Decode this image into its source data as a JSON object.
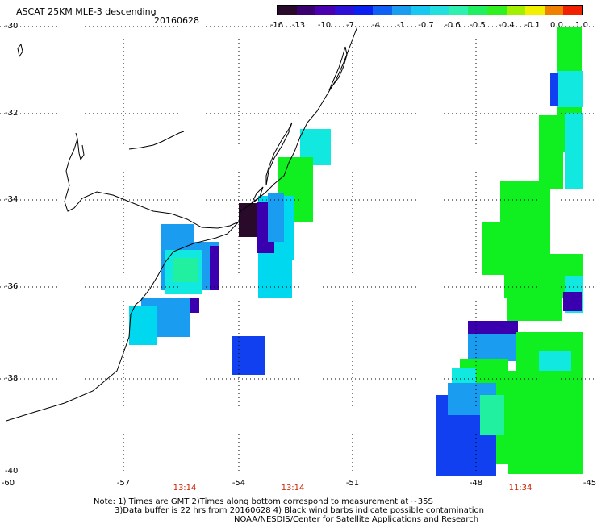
{
  "header": {
    "product": "ASCAT 25KM MLE-3 descending",
    "date": "20160628"
  },
  "colorbar": {
    "colors": [
      "#2a0a2a",
      "#3a0070",
      "#4b00b0",
      "#2d10d8",
      "#0a20f0",
      "#1060f5",
      "#1a9df0",
      "#18c8f0",
      "#22e0e0",
      "#30f0b0",
      "#20f060",
      "#30f020",
      "#a0f000",
      "#f0f000",
      "#f08000",
      "#f02000"
    ],
    "labels": [
      "-16",
      "-13",
      "-10",
      "-7",
      "-4",
      "-1",
      "-0.7",
      "-0.6",
      "-0.5",
      "-0.4",
      "-0.1",
      "0.0",
      "1.0"
    ]
  },
  "axes": {
    "lat_labels": [
      "-30",
      "-32",
      "-34",
      "-36",
      "-38",
      "-40"
    ],
    "lon_labels": [
      "-60",
      "-57",
      "-54",
      "-51",
      "-48",
      "-45"
    ]
  },
  "times": [
    "13:14",
    "13:14",
    "11:34"
  ],
  "notes": {
    "line1": "Note: 1) Times are GMT 2)Times along bottom correspond to measurement at ~35S",
    "line2": "3)Data buffer is 22 hrs from 20160628 4) Black wind barbs indicate possible contamination",
    "line3": "NOAA/NESDIS/Center for Satellite Applications and Research"
  },
  "swath_colors": {
    "green": "#10f020",
    "cyan": "#00d8f0",
    "lightcyan": "#10e8e0",
    "teal": "#20f0a0",
    "blue": "#1a9df0",
    "deepblue": "#1040f0",
    "purple": "#3a00b0",
    "dark": "#2a0a2a"
  }
}
